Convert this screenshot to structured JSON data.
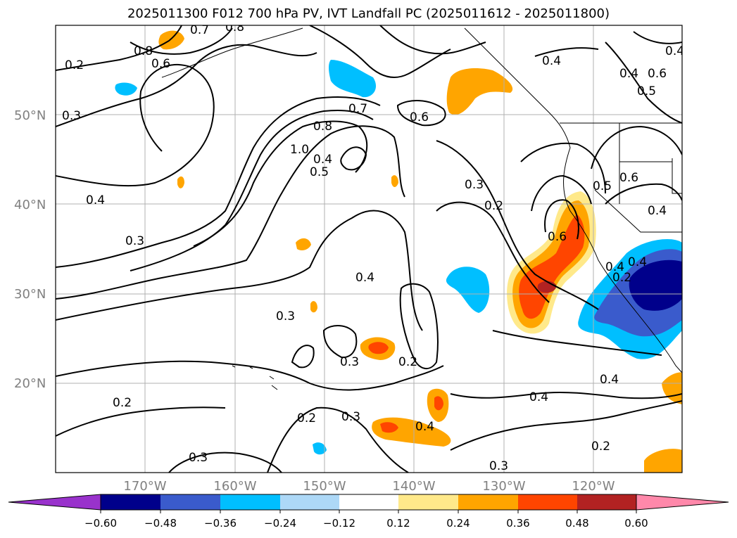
{
  "title": "2025011300 F012 700 hPa PV, IVT Landfall PC (2025011612 - 2025011800)",
  "map": {
    "lat_labels": [
      "50°N",
      "40°N",
      "30°N",
      "20°N"
    ],
    "lon_labels": [
      "170°W",
      "160°W",
      "150°W",
      "140°W",
      "130°W",
      "120°W"
    ],
    "contour_labels": [
      "0.7",
      "0.8",
      "0.8",
      "0.6",
      "0.2",
      "0.3",
      "0.7",
      "0.8",
      "1.0",
      "0.5",
      "0.6",
      "0.4",
      "0.4",
      "0.6",
      "0.5",
      "0.4",
      "0.4",
      "0.3",
      "0.2",
      "0.6",
      "0.5",
      "0.6",
      "0.4",
      "0.4",
      "0.4",
      "0.3",
      "0.3",
      "0.4",
      "0.3",
      "0.2",
      "0.2",
      "0.3",
      "0.2",
      "0.4",
      "0.3",
      "0.2",
      "0.4",
      "0.4",
      "0.2",
      "0.3",
      "0.4"
    ]
  },
  "colorbar": {
    "colors": [
      "#9932cc",
      "#00008b",
      "#3a5bcc",
      "#00bfff",
      "#add8f7",
      "#ffffff",
      "#ffe98a",
      "#ffa500",
      "#ff4500",
      "#b22222",
      "#ff88aa"
    ],
    "tick_labels": [
      "−0.60",
      "−0.48",
      "−0.36",
      "−0.24",
      "−0.12",
      "0.12",
      "0.24",
      "0.36",
      "0.48",
      "0.60"
    ]
  }
}
